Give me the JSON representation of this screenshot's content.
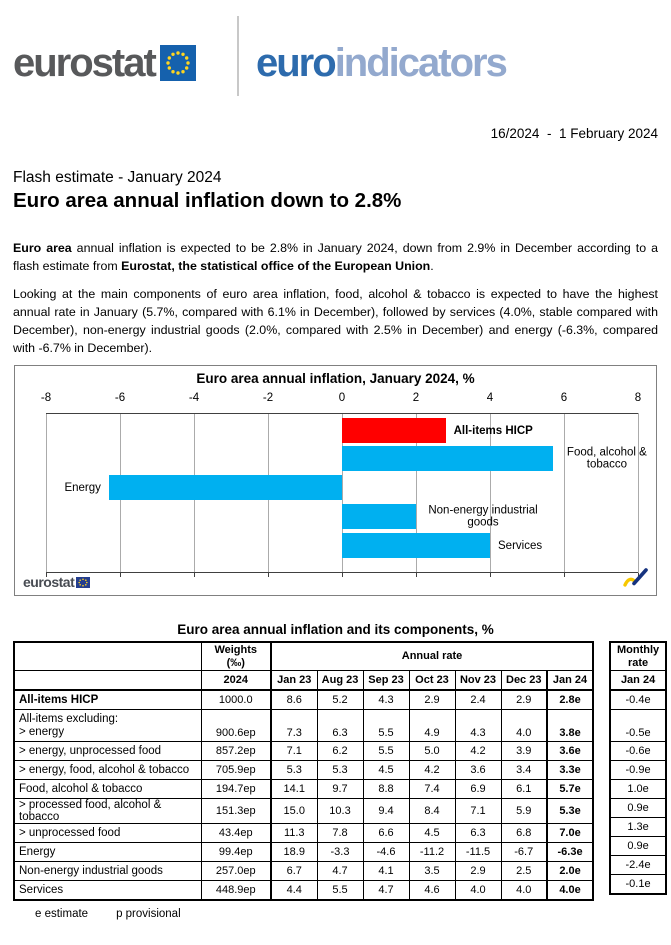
{
  "header": {
    "logo_eurostat": "eurostat",
    "logo_euro": "euro",
    "logo_indicators": "indicators",
    "dateline": "16/2024  -  1 February 2024"
  },
  "titles": {
    "subtitle": "Flash estimate - January 2024",
    "title": "Euro area annual inflation down to 2.8%"
  },
  "body": {
    "p1_bold1": "Euro area",
    "p1_text1": " annual inflation is expected to be 2.8% in January 2024, down from 2.9% in December according to a flash estimate from ",
    "p1_bold2": "Eurostat, the statistical office of the European Union",
    "p1_text2": ".",
    "p2": "Looking at the main components of euro area inflation, food, alcohol & tobacco is expected to have the highest annual rate in January (5.7%, compared with 6.1% in December), followed by services (4.0%, stable compared with December), non-energy industrial goods (2.0%, compared with 2.5% in December) and energy (-6.3%, compared with -6.7% in December).",
    "footnote_e": "e estimate",
    "footnote_p": "p provisional"
  },
  "chart_data": {
    "type": "bar",
    "orientation": "horizontal",
    "title": "Euro area annual inflation, January 2024, %",
    "categories": [
      "All-items HICP",
      "Food, alcohol & tobacco",
      "Energy",
      "Non-energy industrial goods",
      "Services"
    ],
    "values": [
      2.8,
      5.7,
      -6.3,
      2.0,
      4.0
    ],
    "bar_colors": [
      "#ff0000",
      "#00b0f0",
      "#00b0f0",
      "#00b0f0",
      "#00b0f0"
    ],
    "xlim": [
      -8,
      8
    ],
    "xticks": [
      -8,
      -6,
      -4,
      -2,
      0,
      2,
      4,
      6,
      8
    ],
    "grid": true,
    "axis_position": "top",
    "source_label": "eurostat"
  },
  "table": {
    "title": "Euro area annual inflation and its components, %",
    "header": {
      "weights_label": "Weights",
      "weights_unit": "(‰)",
      "weights_year": "2024",
      "annual_rate_label": "Annual rate",
      "months": [
        "Jan 23",
        "Aug 23",
        "Sep 23",
        "Oct 23",
        "Nov 23",
        "Dec 23",
        "Jan 24"
      ],
      "monthly_rate_label": "Monthly rate",
      "monthly_month": "Jan 24"
    },
    "rows": [
      {
        "label": "All-items HICP",
        "bold_label": true,
        "weight": "1000.0",
        "values": [
          "8.6",
          "5.2",
          "4.3",
          "2.9",
          "2.4",
          "2.9",
          "2.8e"
        ],
        "monthly": "-0.4e"
      },
      {
        "label": "All-items excluding:",
        "label2": "> energy",
        "weight": "900.6ep",
        "values": [
          "7.3",
          "6.3",
          "5.5",
          "4.9",
          "4.3",
          "4.0",
          "3.8e"
        ],
        "monthly": "-0.5e"
      },
      {
        "label": "> energy, unprocessed food",
        "weight": "857.2ep",
        "values": [
          "7.1",
          "6.2",
          "5.5",
          "5.0",
          "4.2",
          "3.9",
          "3.6e"
        ],
        "monthly": "-0.6e"
      },
      {
        "label": "> energy, food, alcohol & tobacco",
        "weight": "705.9ep",
        "values": [
          "5.3",
          "5.3",
          "4.5",
          "4.2",
          "3.6",
          "3.4",
          "3.3e"
        ],
        "monthly": "-0.9e"
      },
      {
        "label": "Food, alcohol & tobacco",
        "weight": "194.7ep",
        "values": [
          "14.1",
          "9.7",
          "8.8",
          "7.4",
          "6.9",
          "6.1",
          "5.7e"
        ],
        "monthly": "1.0e"
      },
      {
        "label": "> processed food, alcohol & tobacco",
        "weight": "151.3ep",
        "values": [
          "15.0",
          "10.3",
          "9.4",
          "8.4",
          "7.1",
          "5.9",
          "5.3e"
        ],
        "monthly": "0.9e"
      },
      {
        "label": "> unprocessed food",
        "weight": "43.4ep",
        "values": [
          "11.3",
          "7.8",
          "6.6",
          "4.5",
          "6.3",
          "6.8",
          "7.0e"
        ],
        "monthly": "1.3e"
      },
      {
        "label": "Energy",
        "weight": "99.4ep",
        "values": [
          "18.9",
          "-3.3",
          "-4.6",
          "-11.2",
          "-11.5",
          "-6.7",
          "-6.3e"
        ],
        "monthly": "0.9e"
      },
      {
        "label": "Non-energy industrial goods",
        "weight": "257.0ep",
        "values": [
          "6.7",
          "4.7",
          "4.1",
          "3.5",
          "2.9",
          "2.5",
          "2.0e"
        ],
        "monthly": "-2.4e"
      },
      {
        "label": "Services",
        "weight": "448.9ep",
        "values": [
          "4.4",
          "5.5",
          "4.7",
          "4.6",
          "4.0",
          "4.0",
          "4.0e"
        ],
        "monthly": "-0.1e"
      }
    ]
  }
}
